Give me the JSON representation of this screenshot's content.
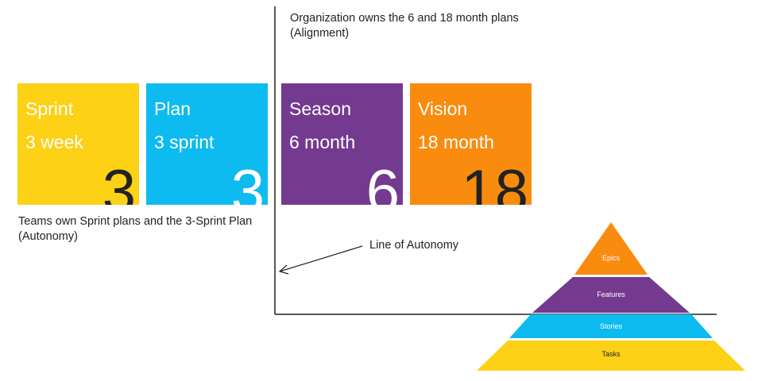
{
  "tiles": [
    {
      "title": "Sprint",
      "subtitle": "3 week",
      "number": "3",
      "color": "#FCD116",
      "number_color": "#222222"
    },
    {
      "title": "Plan",
      "subtitle": "3 sprint",
      "number": "3",
      "color": "#0DBBF0",
      "number_color": "#ffffff"
    },
    {
      "title": "Season",
      "subtitle": "6 month",
      "number": "6",
      "color": "#743A8F",
      "number_color": "#ffffff"
    },
    {
      "title": "Vision",
      "subtitle": "18 month",
      "number": "18",
      "color": "#F98C0E",
      "number_color": "#222222"
    }
  ],
  "notes": {
    "organization": [
      "Organization owns the 6 and 18 month plans",
      "(Alignment)"
    ],
    "teams": [
      "Teams own Sprint plans and the 3-Sprint Plan",
      "(Autonomy)"
    ],
    "line_of_autonomy": "Line of Autonomy"
  },
  "pyramid": [
    {
      "label": "Epics",
      "color": "#F98C0E"
    },
    {
      "label": "Features",
      "color": "#743A8F"
    },
    {
      "label": "Stories",
      "color": "#0DBBF0"
    },
    {
      "label": "Tasks",
      "color": "#FCD116"
    }
  ]
}
